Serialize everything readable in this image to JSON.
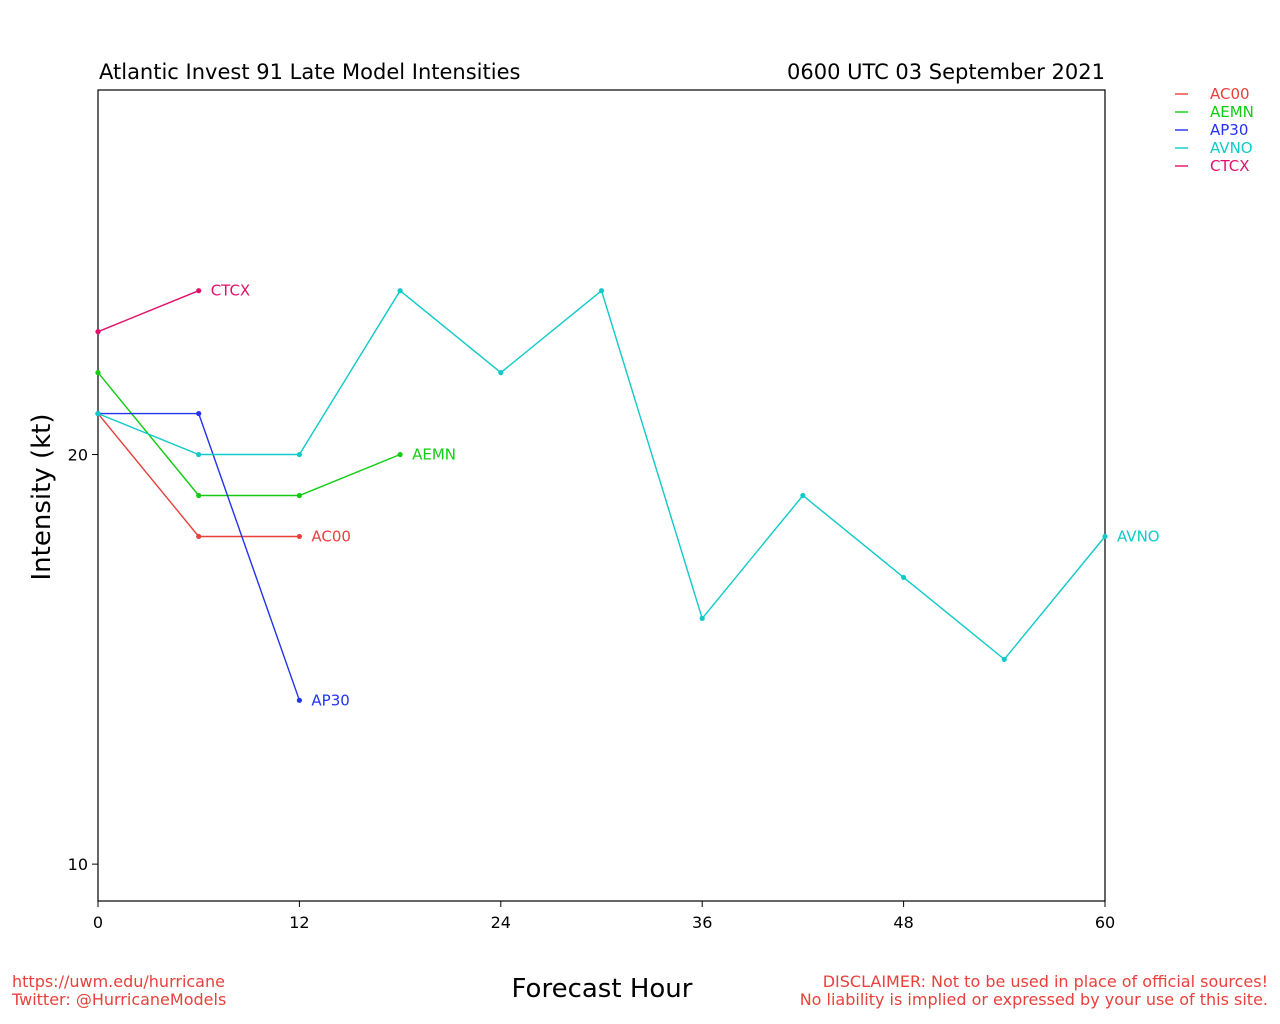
{
  "chart_data": {
    "type": "line",
    "title": "Atlantic Invest 91 Late Model Intensities",
    "subtitle": "0600 UTC 03 September 2021",
    "xlabel": "Forecast Hour",
    "ylabel": "Intensity (kt)",
    "xlim": [
      0,
      60
    ],
    "ylim": [
      9.1,
      28.9
    ],
    "xticks": [
      0,
      12,
      24,
      36,
      48,
      60
    ],
    "yticks": [
      10,
      20
    ],
    "grid": false,
    "legend_position": "top-right, outside plot",
    "series": [
      {
        "name": "AC00",
        "color": "#e8413c",
        "x": [
          0,
          6,
          12
        ],
        "y": [
          21,
          18,
          18
        ]
      },
      {
        "name": "AEMN",
        "color": "#11cc11",
        "x": [
          0,
          6,
          12,
          18
        ],
        "y": [
          22,
          19,
          19,
          20
        ]
      },
      {
        "name": "AP30",
        "color": "#2233ee",
        "x": [
          0,
          6,
          12
        ],
        "y": [
          21,
          21,
          14
        ]
      },
      {
        "name": "AVNO",
        "color": "#11c9c9",
        "x": [
          0,
          6,
          12,
          18,
          24,
          30,
          36,
          42,
          48,
          54,
          60
        ],
        "y": [
          21,
          20,
          20,
          24,
          22,
          24,
          16,
          19,
          17,
          15,
          18
        ]
      },
      {
        "name": "CTCX",
        "color": "#e0106a",
        "x": [
          0,
          6
        ],
        "y": [
          23,
          24
        ]
      }
    ]
  },
  "footer": {
    "url": "https://uwm.edu/hurricane",
    "twitter": "Twitter: @HurricaneModels",
    "disclaimer_line1": "DISCLAIMER: Not to be used in place of official sources!",
    "disclaimer_line2": "No liability is implied or expressed by your use of this site."
  }
}
